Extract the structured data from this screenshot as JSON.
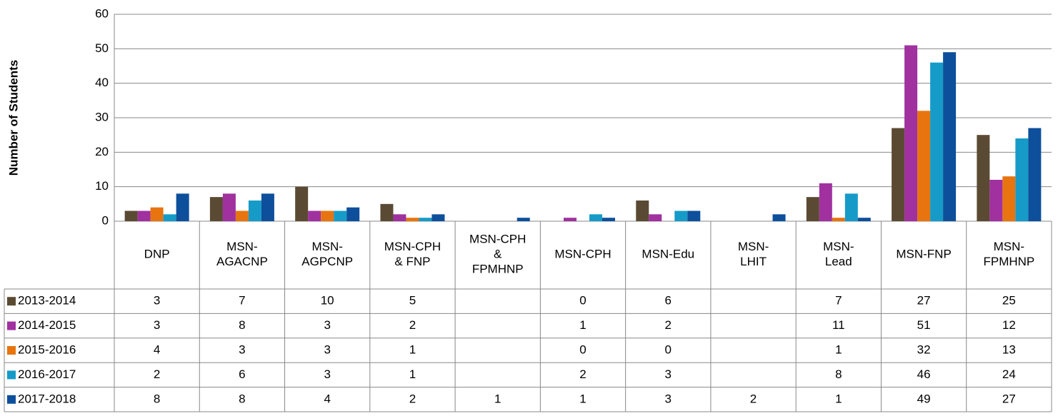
{
  "chart_data": {
    "type": "bar",
    "y_label": "Number of Students",
    "categories": [
      "DNP",
      "MSN-AGACNP",
      "MSN-AGPCNP",
      "MSN-CPH & FNP",
      "MSN-CPH & FPMHNP",
      "MSN-CPH",
      "MSN-Edu",
      "MSN-LHIT",
      "MSN-Lead",
      "MSN-FNP",
      "MSN-FPMHNP"
    ],
    "series": [
      {
        "name": "2013-2014",
        "color": "#5b4a33",
        "values": [
          3,
          7,
          10,
          5,
          null,
          0,
          6,
          null,
          7,
          27,
          25
        ]
      },
      {
        "name": "2014-2015",
        "color": "#a0319f",
        "values": [
          3,
          8,
          3,
          2,
          null,
          1,
          2,
          null,
          11,
          51,
          12
        ]
      },
      {
        "name": "2015-2016",
        "color": "#e8740f",
        "values": [
          4,
          3,
          3,
          1,
          null,
          0,
          0,
          null,
          1,
          32,
          13
        ]
      },
      {
        "name": "2016-2017",
        "color": "#169bc8",
        "values": [
          2,
          6,
          3,
          1,
          null,
          2,
          3,
          null,
          8,
          46,
          24
        ]
      },
      {
        "name": "2017-2018",
        "color": "#0d4f9b",
        "values": [
          8,
          8,
          4,
          2,
          1,
          1,
          3,
          2,
          1,
          49,
          27
        ]
      }
    ],
    "ylim": [
      0,
      60
    ],
    "yticks": [
      0,
      10,
      20,
      30,
      40,
      50,
      60
    ],
    "grid": true
  }
}
